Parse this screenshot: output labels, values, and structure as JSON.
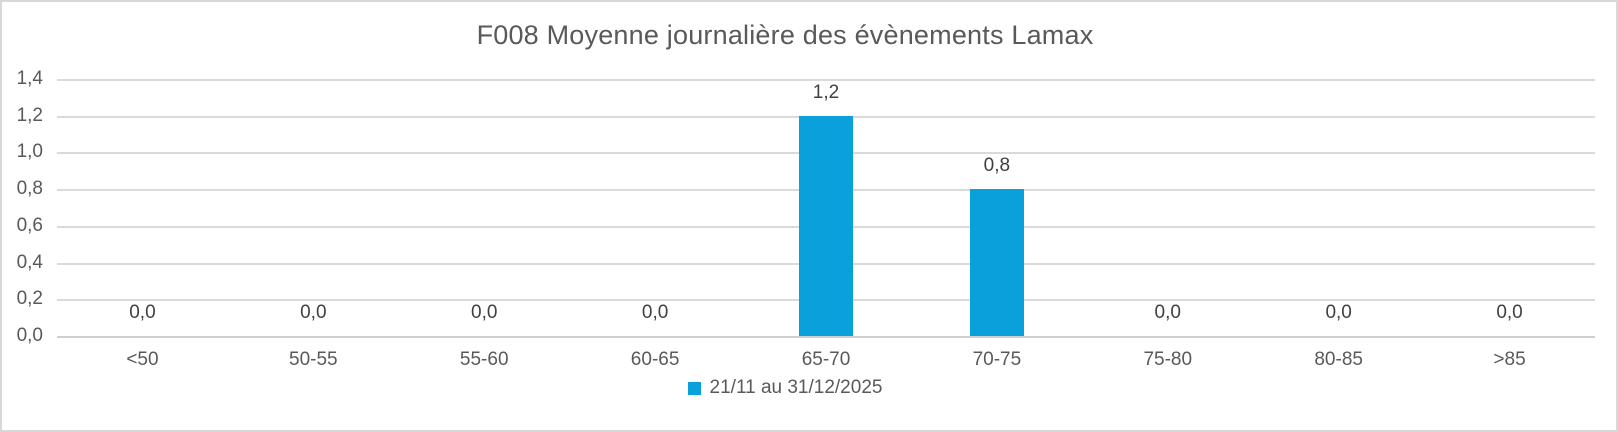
{
  "chart_data": {
    "type": "bar",
    "title": "F008 Moyenne journalière des évènements Lamax",
    "categories": [
      "<50",
      "50-55",
      "55-60",
      "60-65",
      "65-70",
      "70-75",
      "75-80",
      "80-85",
      ">85"
    ],
    "series": [
      {
        "name": "21/11 au 31/12/2025",
        "values": [
          0,
          0,
          0,
          0,
          1.2,
          0.8,
          0,
          0,
          0
        ]
      }
    ],
    "data_labels": [
      "0,0",
      "0,0",
      "0,0",
      "0,0",
      "1,2",
      "0,8",
      "0,0",
      "0,0",
      "0,0"
    ],
    "y_ticks": [
      {
        "label": "0,0",
        "value": 0.0
      },
      {
        "label": "0,2",
        "value": 0.2
      },
      {
        "label": "0,4",
        "value": 0.4
      },
      {
        "label": "0,6",
        "value": 0.6
      },
      {
        "label": "0,8",
        "value": 0.8
      },
      {
        "label": "1,0",
        "value": 1.0
      },
      {
        "label": "1,2",
        "value": 1.2
      },
      {
        "label": "1,4",
        "value": 1.4
      }
    ],
    "ylim": [
      0,
      1.4
    ],
    "xlabel": "",
    "ylabel": "",
    "grid": "horizontal",
    "legend_position": "bottom",
    "colors": {
      "bar": "#0aa0dc",
      "title_text": "#595959",
      "axis_text": "#595959",
      "data_label_text": "#404040",
      "gridline": "#dadada",
      "axis_line": "#cfcfcf",
      "chart_border": "#d8d8d8",
      "background": "#ffffff"
    }
  }
}
